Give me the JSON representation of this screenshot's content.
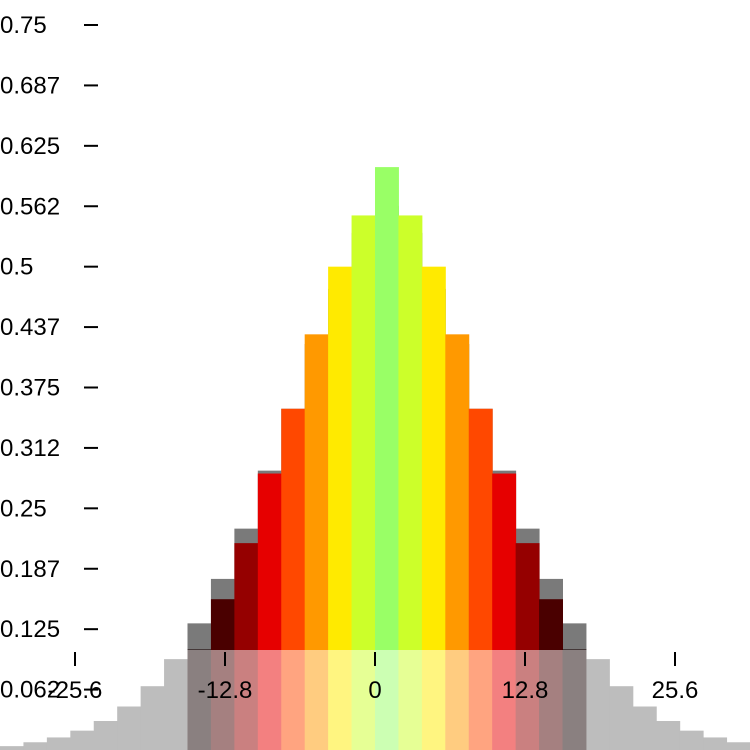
{
  "chart_data": {
    "type": "bar",
    "title": "",
    "xlabel": "",
    "ylabel": "",
    "x_ticks": [
      "-25.6",
      "-12.8",
      "0",
      "12.8",
      "25.6"
    ],
    "x_tick_values": [
      -25.6,
      -12.8,
      0,
      12.8,
      25.6
    ],
    "y_ticks": [
      "0.062",
      "0.125",
      "0.187",
      "0.25",
      "0.312",
      "0.375",
      "0.437",
      "0.5",
      "0.562",
      "0.625",
      "0.687",
      "0.75"
    ],
    "y_tick_values": [
      0.0625,
      0.125,
      0.1875,
      0.25,
      0.3125,
      0.375,
      0.4375,
      0.5,
      0.5625,
      0.625,
      0.6875,
      0.75
    ],
    "xlim": [
      -32,
      32
    ],
    "ylim": [
      0,
      0.75
    ],
    "bin_width": 2,
    "grid": false,
    "overlay_band": {
      "x_axis_band_opacity": 0.5,
      "color": "#ffffff"
    },
    "series": [
      {
        "bins_start": [
          -32,
          -30,
          -28,
          -26,
          -24,
          -22,
          -20,
          -18,
          -16,
          -14,
          -12,
          -10,
          -8,
          -6,
          -4,
          -2,
          0,
          2,
          4,
          6,
          8,
          10,
          12,
          14,
          16,
          18,
          20,
          22,
          24,
          26,
          28,
          30
        ],
        "values": [
          0.004,
          0.008,
          0.013,
          0.02,
          0.03,
          0.045,
          0.066,
          0.094,
          0.131,
          0.177,
          0.229,
          0.289,
          0.353,
          0.42,
          0.477,
          0.535,
          0.563,
          0.535,
          0.477,
          0.42,
          0.353,
          0.289,
          0.229,
          0.177,
          0.131,
          0.094,
          0.066,
          0.045,
          0.03,
          0.02,
          0.013,
          0.008
        ]
      },
      {
        "bins_start": [
          -24,
          -22,
          -20,
          -18,
          -16,
          -14,
          -12,
          -10,
          -8,
          -6,
          -4,
          -2,
          0,
          2,
          4,
          6,
          8,
          10,
          12,
          14,
          16,
          18,
          20,
          22
        ],
        "values": [
          0.0,
          0.0,
          0.0,
          0.0,
          0.104,
          0.156,
          0.214,
          0.286,
          0.353,
          0.43,
          0.5,
          0.553,
          0.603,
          0.553,
          0.5,
          0.43,
          0.353,
          0.286,
          0.214,
          0.156,
          0.104,
          0.0,
          0.0,
          0.0
        ],
        "colors": [
          "#000000",
          "#000000",
          "#000000",
          "#000000",
          "#150000",
          "#4a0000",
          "#950000",
          "#e60000",
          "#ff4800",
          "#ff9900",
          "#ffea00",
          "#ccff2a",
          "#99ff66",
          "#ccff2a",
          "#ffea00",
          "#ff9900",
          "#ff4800",
          "#e60000",
          "#950000",
          "#4a0000",
          "#150000",
          "#000000",
          "#000000",
          "#000000"
        ]
      }
    ]
  }
}
